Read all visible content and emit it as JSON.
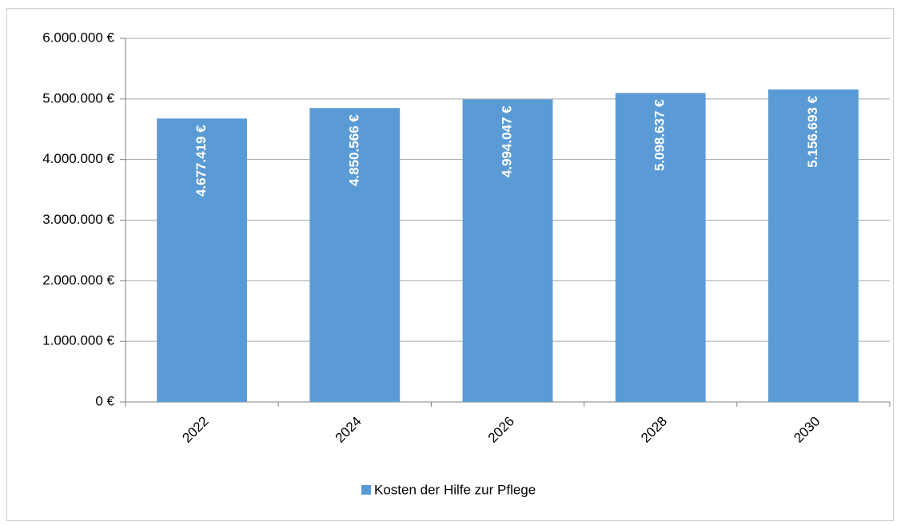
{
  "chart_data": {
    "type": "bar",
    "categories": [
      "2022",
      "2024",
      "2026",
      "2028",
      "2030"
    ],
    "series": [
      {
        "name": "Kosten der Hilfe zur Pflege",
        "color": "#5b9bd5",
        "values": [
          4677419,
          4850566,
          4994047,
          5098637,
          5156693
        ],
        "value_labels": [
          "4.677.419 €",
          "4.850.566 €",
          "4.994.047 €",
          "5.098.637 €",
          "5.156.693 €"
        ]
      }
    ],
    "ylim": [
      0,
      6000000
    ],
    "yticks": [
      {
        "value": 0,
        "label": "0 €"
      },
      {
        "value": 1000000,
        "label": "1.000.000 €"
      },
      {
        "value": 2000000,
        "label": "2.000.000 €"
      },
      {
        "value": 3000000,
        "label": "3.000.000 €"
      },
      {
        "value": 4000000,
        "label": "4.000.000 €"
      },
      {
        "value": 5000000,
        "label": "5.000.000 €"
      },
      {
        "value": 6000000,
        "label": "6.000.000 €"
      }
    ],
    "grid": true,
    "legend": "bottom"
  }
}
